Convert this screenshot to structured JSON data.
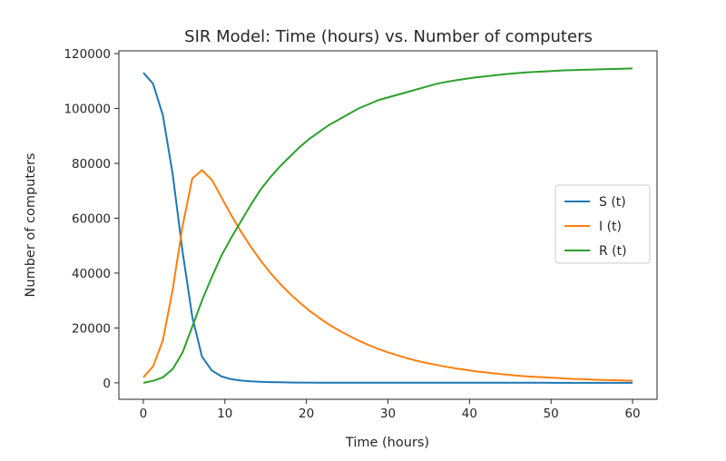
{
  "chart_data": {
    "type": "line",
    "title": "SIR Model: Time (hours) vs. Number of computers",
    "xlabel": "Time (hours)",
    "ylabel": "Number of computers",
    "xlim": [
      -3,
      63
    ],
    "ylim": [
      -6000,
      121000
    ],
    "xticks": [
      0,
      10,
      20,
      30,
      40,
      50,
      60
    ],
    "yticks": [
      0,
      20000,
      40000,
      60000,
      80000,
      100000,
      120000
    ],
    "grid": false,
    "legend_position": "center-right",
    "x": [
      0,
      1.2,
      2.4,
      3.6,
      4.8,
      6,
      7.2,
      8.4,
      9.6,
      10.8,
      12,
      13.2,
      14.4,
      15.6,
      16.8,
      18,
      19.2,
      20.4,
      21.6,
      22.8,
      24,
      25.2,
      26.4,
      27.6,
      28.8,
      30,
      31.2,
      32.4,
      33.6,
      34.8,
      36,
      37.2,
      38.4,
      39.6,
      40.8,
      42,
      43.2,
      44.4,
      45.6,
      46.8,
      48,
      49.2,
      50.4,
      51.6,
      52.8,
      54,
      55.2,
      56.4,
      57.6,
      58.8,
      60
    ],
    "series": [
      {
        "name": "S (t)",
        "color": "#1f77b4",
        "values": [
          113000,
          109000,
          97500,
          76000,
          48000,
          24000,
          9500,
          4500,
          2300,
          1300,
          800,
          500,
          350,
          250,
          180,
          130,
          100,
          80,
          60,
          50,
          40,
          35,
          30,
          25,
          20,
          18,
          16,
          14,
          12,
          11,
          10,
          9,
          8,
          7,
          6,
          5,
          5,
          4,
          4,
          3,
          3,
          3,
          2,
          2,
          2,
          2,
          1,
          1,
          1,
          1,
          1
        ]
      },
      {
        "name": "I (t)",
        "color": "#ff7f0e",
        "values": [
          2000,
          6000,
          15500,
          34000,
          57000,
          74500,
          77500,
          74000,
          67500,
          61000,
          55000,
          49500,
          44500,
          40000,
          36000,
          32400,
          29200,
          26200,
          23600,
          21200,
          19100,
          17200,
          15400,
          13800,
          12400,
          11100,
          10000,
          8900,
          8000,
          7200,
          6500,
          5800,
          5200,
          4700,
          4200,
          3800,
          3400,
          3000,
          2700,
          2400,
          2200,
          2000,
          1800,
          1600,
          1400,
          1300,
          1150,
          1050,
          950,
          850,
          750
        ]
      },
      {
        "name": "R (t)",
        "color": "#2ca02c",
        "values": [
          0,
          700,
          2000,
          5000,
          11000,
          20500,
          30000,
          38500,
          46500,
          53000,
          59000,
          65000,
          70500,
          75000,
          79000,
          82500,
          86000,
          89000,
          91500,
          94000,
          96000,
          98000,
          100000,
          101500,
          103000,
          104000,
          105000,
          106000,
          107000,
          108000,
          109000,
          109700,
          110300,
          110800,
          111300,
          111700,
          112100,
          112500,
          112800,
          113100,
          113300,
          113500,
          113700,
          113900,
          114000,
          114100,
          114200,
          114300,
          114400,
          114500,
          114600
        ]
      }
    ]
  }
}
